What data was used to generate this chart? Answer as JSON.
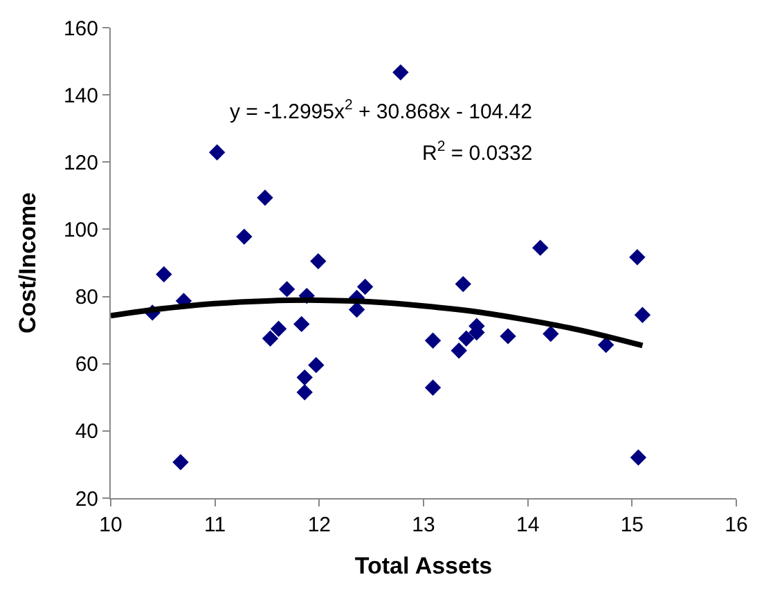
{
  "chart_data": {
    "type": "scatter",
    "xlabel": "Total Assets",
    "ylabel": "Cost/Income",
    "xlim": [
      10,
      16
    ],
    "xticks": [
      10,
      11,
      12,
      13,
      14,
      15,
      16
    ],
    "ylim": [
      20,
      160
    ],
    "yticks": [
      20,
      40,
      60,
      80,
      100,
      120,
      140,
      160
    ],
    "annotations": [
      "y = -1.2995x$^{2}$ + 30.868x - 104.42",
      "R$^{2}$ = 0.0332"
    ],
    "series": [
      {
        "marker": "diamond",
        "color": "#000080",
        "x": [
          10.4,
          10.51,
          10.7,
          10.67,
          11.02,
          11.28,
          11.48,
          11.53,
          11.61,
          11.69,
          11.83,
          11.88,
          11.86,
          11.86,
          11.97,
          11.99,
          12.36,
          12.36,
          12.44,
          12.78,
          13.09,
          13.09,
          13.34,
          13.38,
          13.41,
          13.51,
          13.51,
          13.81,
          14.12,
          14.22,
          14.75,
          15.05,
          15.1,
          15.06
        ],
        "values": [
          75.2,
          86.6,
          78.7,
          30.7,
          122.9,
          97.8,
          109.4,
          67.5,
          70.4,
          82.2,
          71.8,
          80.2,
          55.9,
          51.5,
          59.6,
          90.5,
          79.6,
          76.1,
          82.9,
          146.7,
          66.9,
          52.9,
          63.9,
          83.7,
          67.5,
          71.2,
          69.3,
          68.2,
          94.5,
          68.9,
          65.6,
          91.7,
          74.5,
          32.1
        ]
      },
      {
        "type": "line",
        "marker": "none",
        "line_style": "solid",
        "color": "#000000",
        "x": [
          10,
          10.5,
          11,
          11.5,
          12,
          12.5,
          13,
          13.5,
          14,
          14.5,
          15.1
        ],
        "values": [
          74.3,
          76.4,
          77.9,
          78.7,
          78.9,
          78.4,
          77.2,
          75.5,
          73.0,
          70.0,
          65.4
        ]
      }
    ]
  }
}
